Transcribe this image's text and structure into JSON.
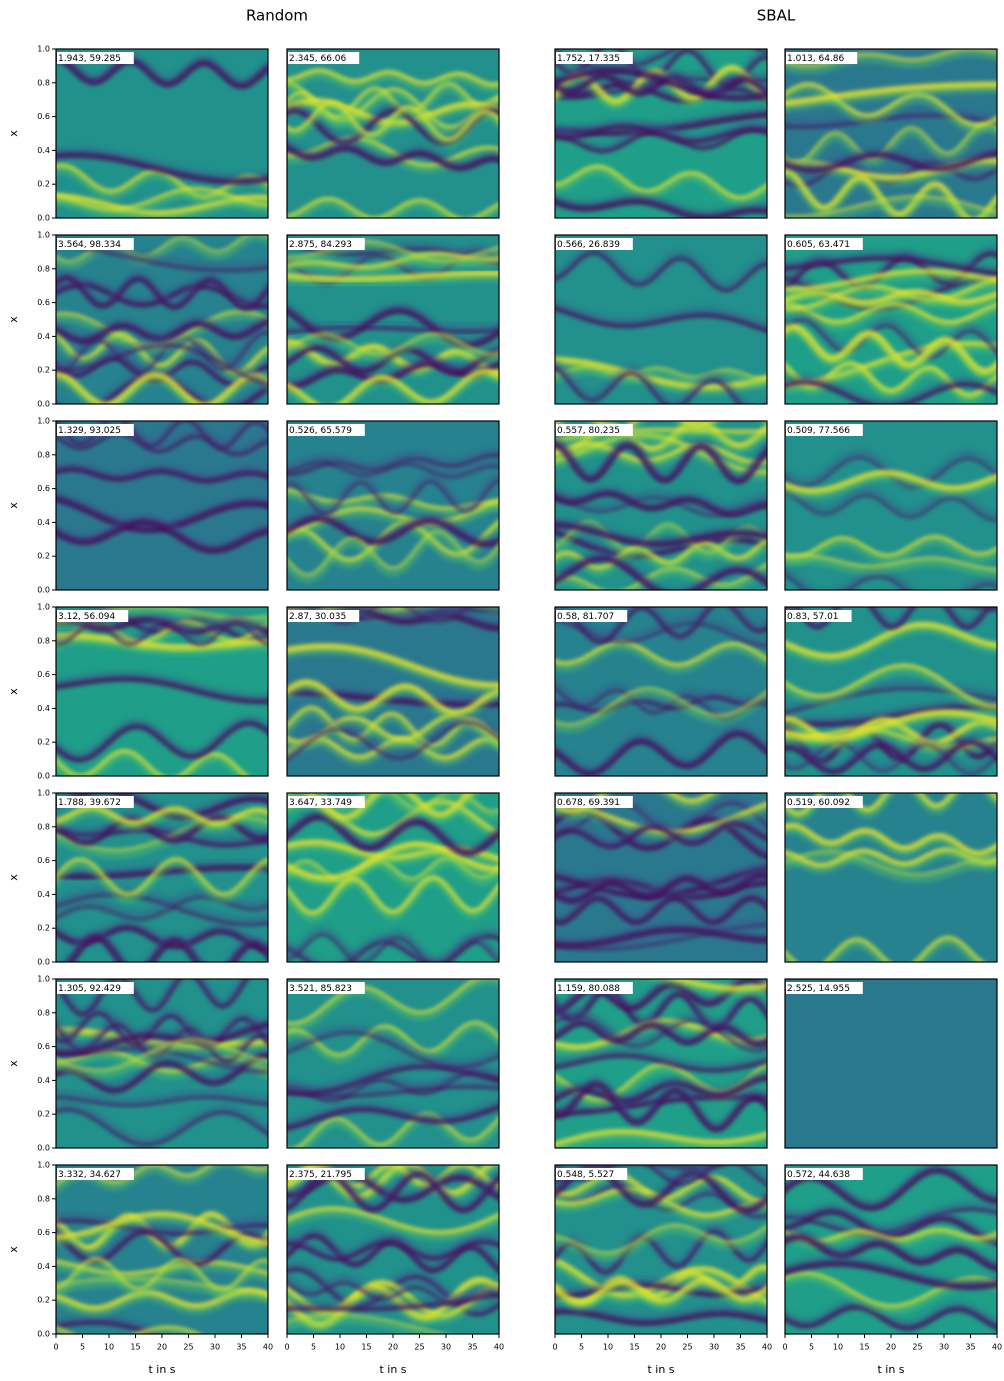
{
  "chart_data": {
    "type": "heatmap-grid",
    "groups": [
      {
        "title": "Random"
      },
      {
        "title": "SBAL"
      }
    ],
    "xlabel": "t in s",
    "ylabel": "x",
    "xlim": [
      0,
      40
    ],
    "ylim": [
      0,
      1
    ],
    "xticks": [
      0,
      5,
      10,
      15,
      20,
      25,
      30,
      35,
      40
    ],
    "yticks": [
      {
        "value": 0,
        "label": "0.0"
      },
      {
        "value": 0.2,
        "label": "0.2"
      },
      {
        "value": 0.4,
        "label": "0.4"
      },
      {
        "value": 0.6,
        "label": "0.6"
      },
      {
        "value": 0.8,
        "label": "0.8"
      },
      {
        "value": 1,
        "label": "1.0"
      }
    ],
    "panels": [
      [
        "1.943, 59.285",
        "2.345, 66.06",
        "1.752, 17.335",
        "1.013, 64.86"
      ],
      [
        "3.564, 98.334",
        "2.875, 84.293",
        "0.566, 26.839",
        "0.605, 63.471"
      ],
      [
        "1.329, 93.025",
        "0.526, 65.579",
        "0.557, 80.235",
        "0.509, 77.566"
      ],
      [
        "3.12, 56.094",
        "2.87, 30.035",
        "0.58, 81.707",
        "0.83, 57.01"
      ],
      [
        "1.788, 39.672",
        "3.647, 33.749",
        "0.678, 69.391",
        "0.519, 60.092"
      ],
      [
        "1.305, 92.429",
        "3.521, 85.823",
        "1.159, 80.088",
        "2.525, 14.955"
      ],
      [
        "3.332, 34.627",
        "2.375, 21.795",
        "0.548, 5.527",
        "0.572, 44.638"
      ]
    ]
  }
}
